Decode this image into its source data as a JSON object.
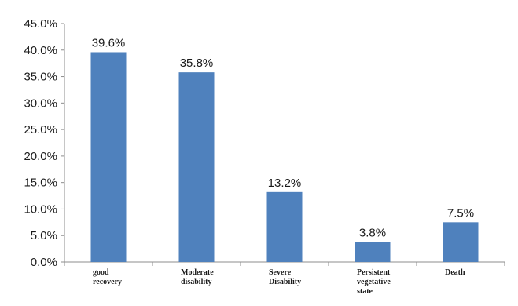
{
  "chart_data": {
    "type": "bar",
    "categories": [
      [
        "good",
        "recovery"
      ],
      [
        "Moderate",
        "disability"
      ],
      [
        "Severe",
        "Disability"
      ],
      [
        "Persistent",
        "vegetative",
        "state"
      ],
      [
        "Death"
      ]
    ],
    "values": [
      39.6,
      35.8,
      13.2,
      3.8,
      7.5
    ],
    "data_labels": [
      "39.6%",
      "35.8%",
      "13.2%",
      "3.8%",
      "7.5%"
    ],
    "yticks": [
      "0.0%",
      "5.0%",
      "10.0%",
      "15.0%",
      "20.0%",
      "25.0%",
      "30.0%",
      "35.0%",
      "40.0%",
      "45.0%"
    ],
    "ylim": [
      0,
      45
    ],
    "title": "",
    "xlabel": "",
    "ylabel": "",
    "grid": false,
    "legend": "none",
    "bar_color": "#4f81bd",
    "axis_color": "#8c8c8c"
  }
}
